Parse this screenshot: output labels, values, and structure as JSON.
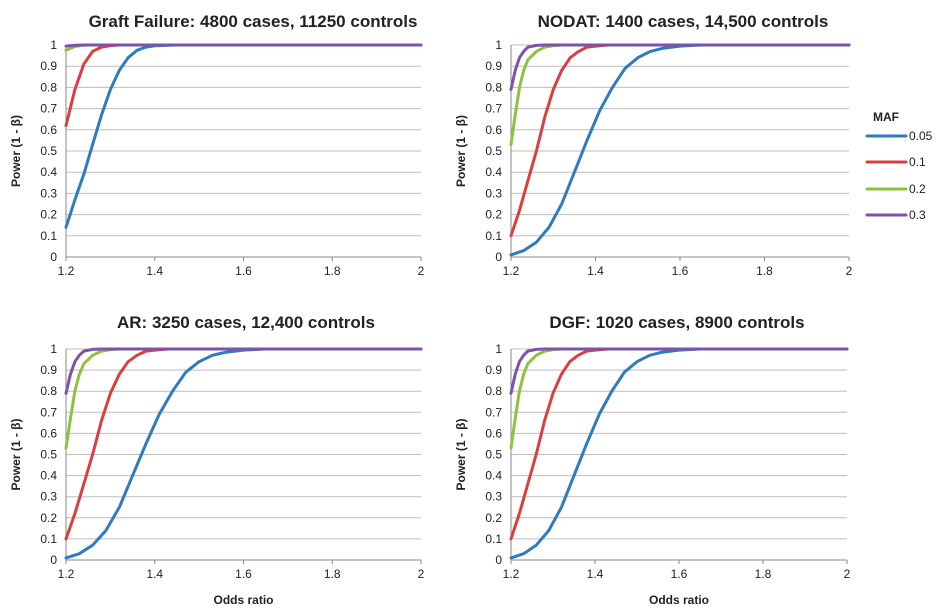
{
  "colors": {
    "0.05": "#2e7bbf",
    "0.1": "#d8403f",
    "0.2": "#8fc13f",
    "0.3": "#7b54a8",
    "grid": "#bdbdbd"
  },
  "legend": {
    "title": "MAF",
    "entries": [
      "0.05",
      "0.1",
      "0.2",
      "0.3"
    ]
  },
  "chart_data": [
    {
      "type": "line",
      "title": "Graft Failure: 4800 cases, 11250 controls",
      "xlabel": "",
      "ylabel": "Power (1 - β)",
      "xlim": [
        1.2,
        2
      ],
      "ylim": [
        0,
        1
      ],
      "x_ticks": [
        "1.2",
        "1.4",
        "1.6",
        "1.8",
        "2"
      ],
      "y_ticks": [
        "0",
        "0.1",
        "0.2",
        "0.3",
        "0.4",
        "0.5",
        "0.6",
        "0.7",
        "0.8",
        "0.9",
        "1"
      ],
      "grid": true,
      "series": [
        {
          "name": "0.05",
          "x": [
            1.2,
            1.22,
            1.24,
            1.26,
            1.28,
            1.3,
            1.32,
            1.34,
            1.36,
            1.38,
            1.4,
            1.45,
            1.5,
            2.0
          ],
          "y": [
            0.14,
            0.27,
            0.39,
            0.53,
            0.67,
            0.79,
            0.88,
            0.94,
            0.975,
            0.99,
            0.996,
            1.0,
            1.0,
            1.0
          ]
        },
        {
          "name": "0.1",
          "x": [
            1.2,
            1.22,
            1.24,
            1.26,
            1.28,
            1.3,
            1.32,
            1.35,
            2.0
          ],
          "y": [
            0.62,
            0.79,
            0.91,
            0.97,
            0.99,
            0.997,
            1.0,
            1.0,
            1.0
          ]
        },
        {
          "name": "0.2",
          "x": [
            1.2,
            1.22,
            1.24,
            1.26,
            2.0
          ],
          "y": [
            0.975,
            0.993,
            0.999,
            1.0,
            1.0
          ]
        },
        {
          "name": "0.3",
          "x": [
            1.2,
            1.22,
            1.24,
            2.0
          ],
          "y": [
            0.995,
            0.999,
            1.0,
            1.0
          ]
        }
      ]
    },
    {
      "type": "line",
      "title": "NODAT: 1400 cases, 14,500 controls",
      "xlabel": "",
      "ylabel": "Power (1 - β)",
      "xlim": [
        1.2,
        2
      ],
      "ylim": [
        0,
        1
      ],
      "x_ticks": [
        "1.2",
        "1.4",
        "1.6",
        "1.8",
        "2"
      ],
      "y_ticks": [
        "0",
        "0.1",
        "0.2",
        "0.3",
        "0.4",
        "0.5",
        "0.6",
        "0.7",
        "0.8",
        "0.9",
        "1"
      ],
      "grid": true,
      "series": [
        {
          "name": "0.05",
          "x": [
            1.2,
            1.23,
            1.26,
            1.29,
            1.32,
            1.35,
            1.38,
            1.41,
            1.44,
            1.47,
            1.5,
            1.53,
            1.56,
            1.6,
            1.65,
            2.0
          ],
          "y": [
            0.01,
            0.03,
            0.07,
            0.14,
            0.25,
            0.4,
            0.55,
            0.69,
            0.8,
            0.89,
            0.94,
            0.97,
            0.985,
            0.995,
            1.0,
            1.0
          ]
        },
        {
          "name": "0.1",
          "x": [
            1.2,
            1.22,
            1.24,
            1.26,
            1.28,
            1.3,
            1.32,
            1.34,
            1.36,
            1.38,
            1.4,
            1.43,
            1.46,
            2.0
          ],
          "y": [
            0.1,
            0.22,
            0.36,
            0.5,
            0.66,
            0.79,
            0.88,
            0.94,
            0.97,
            0.99,
            0.995,
            1.0,
            1.0,
            1.0
          ]
        },
        {
          "name": "0.2",
          "x": [
            1.2,
            1.21,
            1.22,
            1.23,
            1.24,
            1.26,
            1.28,
            1.3,
            1.32,
            1.35,
            2.0
          ],
          "y": [
            0.53,
            0.67,
            0.8,
            0.88,
            0.93,
            0.97,
            0.99,
            0.997,
            1.0,
            1.0,
            1.0
          ]
        },
        {
          "name": "0.3",
          "x": [
            1.2,
            1.21,
            1.22,
            1.23,
            1.24,
            1.26,
            1.28,
            2.0
          ],
          "y": [
            0.79,
            0.88,
            0.94,
            0.97,
            0.99,
            0.998,
            1.0,
            1.0
          ]
        }
      ]
    },
    {
      "type": "line",
      "title": "AR: 3250 cases, 12,400 controls",
      "xlabel": "Odds ratio",
      "ylabel": "Power (1 - β)",
      "xlim": [
        1.2,
        2
      ],
      "ylim": [
        0,
        1
      ],
      "x_ticks": [
        "1.2",
        "1.4",
        "1.6",
        "1.8",
        "2"
      ],
      "y_ticks": [
        "0",
        "0.1",
        "0.2",
        "0.3",
        "0.4",
        "0.5",
        "0.6",
        "0.7",
        "0.8",
        "0.9",
        "1"
      ],
      "grid": true,
      "series": [
        {
          "name": "0.05",
          "x": [
            1.2,
            1.23,
            1.26,
            1.29,
            1.32,
            1.35,
            1.38,
            1.41,
            1.44,
            1.47,
            1.5,
            1.53,
            1.56,
            1.6,
            1.65,
            2.0
          ],
          "y": [
            0.01,
            0.03,
            0.07,
            0.14,
            0.25,
            0.4,
            0.55,
            0.69,
            0.8,
            0.89,
            0.94,
            0.97,
            0.985,
            0.995,
            1.0,
            1.0
          ]
        },
        {
          "name": "0.1",
          "x": [
            1.2,
            1.22,
            1.24,
            1.26,
            1.28,
            1.3,
            1.32,
            1.34,
            1.36,
            1.38,
            1.4,
            1.43,
            1.46,
            2.0
          ],
          "y": [
            0.1,
            0.22,
            0.36,
            0.5,
            0.66,
            0.79,
            0.88,
            0.94,
            0.97,
            0.99,
            0.995,
            1.0,
            1.0,
            1.0
          ]
        },
        {
          "name": "0.2",
          "x": [
            1.2,
            1.21,
            1.22,
            1.23,
            1.24,
            1.26,
            1.28,
            1.3,
            1.32,
            1.35,
            2.0
          ],
          "y": [
            0.53,
            0.67,
            0.8,
            0.88,
            0.93,
            0.97,
            0.99,
            0.997,
            1.0,
            1.0,
            1.0
          ]
        },
        {
          "name": "0.3",
          "x": [
            1.2,
            1.21,
            1.22,
            1.23,
            1.24,
            1.26,
            1.28,
            2.0
          ],
          "y": [
            0.79,
            0.88,
            0.94,
            0.97,
            0.99,
            0.998,
            1.0,
            1.0
          ]
        }
      ]
    },
    {
      "type": "line",
      "title": "DGF: 1020 cases, 8900 controls",
      "xlabel": "Odds ratio",
      "ylabel": "Power (1 - β)",
      "xlim": [
        1.2,
        2
      ],
      "ylim": [
        0,
        1
      ],
      "x_ticks": [
        "1.2",
        "1.4",
        "1.6",
        "1.8",
        "2"
      ],
      "y_ticks": [
        "0",
        "0.1",
        "0.2",
        "0.3",
        "0.4",
        "0.5",
        "0.6",
        "0.7",
        "0.8",
        "0.9",
        "1"
      ],
      "grid": true,
      "series": [
        {
          "name": "0.05",
          "x": [
            1.2,
            1.23,
            1.26,
            1.29,
            1.32,
            1.35,
            1.38,
            1.41,
            1.44,
            1.47,
            1.5,
            1.53,
            1.56,
            1.6,
            1.65,
            2.0
          ],
          "y": [
            0.01,
            0.03,
            0.07,
            0.14,
            0.25,
            0.4,
            0.55,
            0.69,
            0.8,
            0.89,
            0.94,
            0.97,
            0.985,
            0.995,
            1.0,
            1.0
          ]
        },
        {
          "name": "0.1",
          "x": [
            1.2,
            1.22,
            1.24,
            1.26,
            1.28,
            1.3,
            1.32,
            1.34,
            1.36,
            1.38,
            1.4,
            1.43,
            1.46,
            2.0
          ],
          "y": [
            0.1,
            0.22,
            0.36,
            0.5,
            0.66,
            0.79,
            0.88,
            0.94,
            0.97,
            0.99,
            0.995,
            1.0,
            1.0,
            1.0
          ]
        },
        {
          "name": "0.2",
          "x": [
            1.2,
            1.21,
            1.22,
            1.23,
            1.24,
            1.26,
            1.28,
            1.3,
            1.32,
            1.35,
            2.0
          ],
          "y": [
            0.53,
            0.67,
            0.8,
            0.88,
            0.93,
            0.97,
            0.99,
            0.997,
            1.0,
            1.0,
            1.0
          ]
        },
        {
          "name": "0.3",
          "x": [
            1.2,
            1.21,
            1.22,
            1.23,
            1.24,
            1.26,
            1.28,
            2.0
          ],
          "y": [
            0.79,
            0.88,
            0.94,
            0.97,
            0.99,
            0.998,
            1.0,
            1.0
          ]
        }
      ]
    }
  ]
}
